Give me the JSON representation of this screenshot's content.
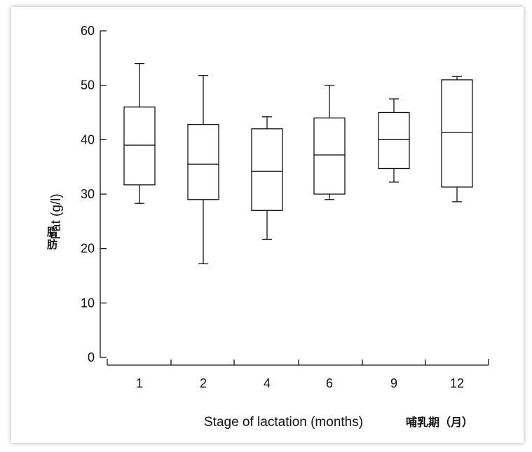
{
  "chart_data": {
    "type": "box",
    "categories": [
      "1",
      "2",
      "4",
      "6",
      "9",
      "12"
    ],
    "boxes": [
      {
        "category": "1",
        "min": 28.3,
        "q1": 31.7,
        "median": 39.0,
        "q3": 46.0,
        "max": 54.0
      },
      {
        "category": "2",
        "min": 17.2,
        "q1": 29.0,
        "median": 35.5,
        "q3": 42.8,
        "max": 51.8
      },
      {
        "category": "4",
        "min": 21.7,
        "q1": 27.0,
        "median": 34.2,
        "q3": 42.0,
        "max": 44.2
      },
      {
        "category": "6",
        "min": 29.0,
        "q1": 30.0,
        "median": 37.2,
        "q3": 44.0,
        "max": 50.0
      },
      {
        "category": "9",
        "min": 32.2,
        "q1": 34.7,
        "median": 40.0,
        "q3": 45.0,
        "max": 47.5
      },
      {
        "category": "12",
        "min": 28.6,
        "q1": 31.3,
        "median": 41.3,
        "q3": 51.0,
        "max": 51.6
      }
    ],
    "ylabel": "Fat (g/l)",
    "ylabel_cjk": "脂肪",
    "xlabel": "Stage of lactation (months)",
    "xlabel_cjk": "哺乳期（月）",
    "yticks": [
      0,
      10,
      20,
      30,
      40,
      50,
      60
    ],
    "ylim": [
      0,
      60
    ],
    "grid": false
  }
}
